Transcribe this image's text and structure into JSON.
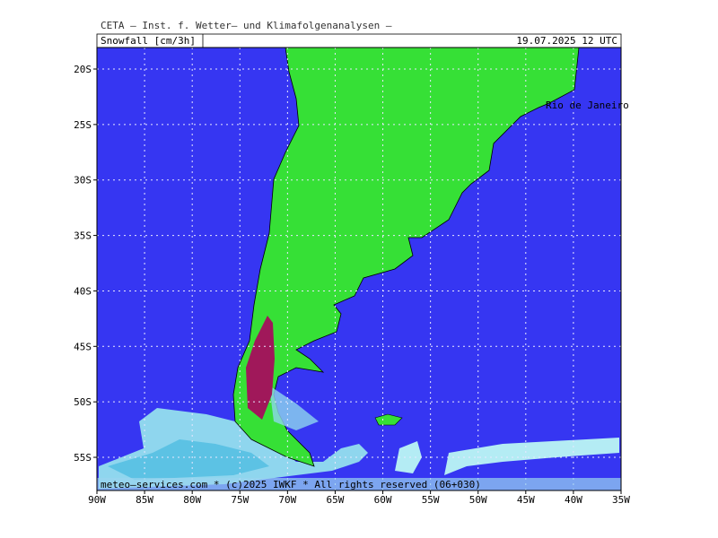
{
  "header": {
    "title": "CETA – Inst. f. Wetter– und Klimafolgenanalysen –",
    "parameter": "Snowfall [cm/3h]",
    "valid_time": "19.07.2025 12 UTC"
  },
  "map": {
    "city_label": "Rio de Janeiro",
    "footer": "meteo–services.com * (c)2025 IWKF * All rights reserved (06+030)",
    "lat_labels": [
      "20S",
      "25S",
      "30S",
      "35S",
      "40S",
      "45S",
      "50S",
      "55S"
    ],
    "lon_labels": [
      "90W",
      "85W",
      "80W",
      "75W",
      "70W",
      "65W",
      "60W",
      "55W",
      "50W",
      "45W",
      "40W",
      "35W"
    ]
  }
}
